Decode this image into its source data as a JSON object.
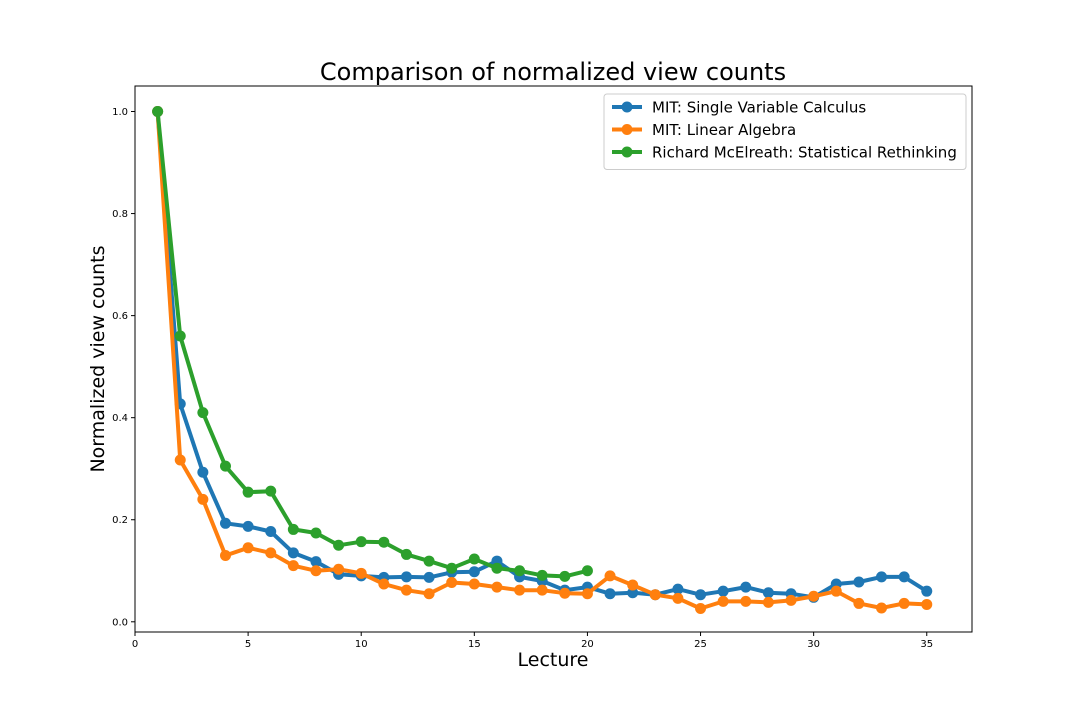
{
  "chart_data": {
    "type": "line",
    "title": "Comparison of normalized view counts",
    "xlabel": "Lecture",
    "ylabel": "Normalized view counts",
    "xlim": [
      0,
      37
    ],
    "ylim": [
      -0.02,
      1.05
    ],
    "xticks": [
      0,
      5,
      10,
      15,
      20,
      25,
      30,
      35
    ],
    "yticks": [
      0.0,
      0.2,
      0.4,
      0.6,
      0.8,
      1.0
    ],
    "xtick_labels": [
      "0",
      "5",
      "10",
      "15",
      "20",
      "25",
      "30",
      "35"
    ],
    "ytick_labels": [
      "0.0",
      "0.2",
      "0.4",
      "0.6",
      "0.8",
      "1.0"
    ],
    "grid": false,
    "legend_position": "top-right",
    "series": [
      {
        "name": "MIT: Single Variable Calculus",
        "color": "#1f77b4",
        "x": [
          1,
          2,
          3,
          4,
          5,
          6,
          7,
          8,
          9,
          10,
          11,
          12,
          13,
          14,
          15,
          16,
          17,
          18,
          19,
          20,
          21,
          22,
          23,
          24,
          25,
          26,
          27,
          28,
          29,
          30,
          31,
          32,
          33,
          34,
          35
        ],
        "values": [
          1.0,
          0.427,
          0.293,
          0.193,
          0.187,
          0.177,
          0.135,
          0.118,
          0.093,
          0.09,
          0.087,
          0.088,
          0.087,
          0.097,
          0.098,
          0.119,
          0.088,
          0.08,
          0.062,
          0.068,
          0.055,
          0.057,
          0.053,
          0.064,
          0.053,
          0.06,
          0.068,
          0.057,
          0.055,
          0.048,
          0.074,
          0.078,
          0.088,
          0.088,
          0.06
        ]
      },
      {
        "name": "MIT: Linear Algebra",
        "color": "#ff7f0e",
        "x": [
          1,
          2,
          3,
          4,
          5,
          6,
          7,
          8,
          9,
          10,
          11,
          12,
          13,
          14,
          15,
          16,
          17,
          18,
          19,
          20,
          21,
          22,
          23,
          24,
          25,
          26,
          27,
          28,
          29,
          30,
          31,
          32,
          33,
          34,
          35
        ],
        "values": [
          1.0,
          0.317,
          0.24,
          0.13,
          0.145,
          0.135,
          0.11,
          0.1,
          0.103,
          0.095,
          0.074,
          0.062,
          0.055,
          0.077,
          0.074,
          0.068,
          0.062,
          0.062,
          0.056,
          0.055,
          0.09,
          0.072,
          0.053,
          0.046,
          0.026,
          0.04,
          0.04,
          0.038,
          0.042,
          0.05,
          0.06,
          0.036,
          0.027,
          0.036,
          0.034
        ]
      },
      {
        "name": "Richard McElreath: Statistical Rethinking",
        "color": "#2ca02c",
        "x": [
          1,
          2,
          3,
          4,
          5,
          6,
          7,
          8,
          9,
          10,
          11,
          12,
          13,
          14,
          15,
          16,
          17,
          18,
          19,
          20
        ],
        "values": [
          1.0,
          0.56,
          0.41,
          0.305,
          0.254,
          0.256,
          0.181,
          0.174,
          0.15,
          0.157,
          0.156,
          0.132,
          0.119,
          0.105,
          0.123,
          0.105,
          0.1,
          0.091,
          0.089,
          0.1
        ]
      }
    ]
  }
}
